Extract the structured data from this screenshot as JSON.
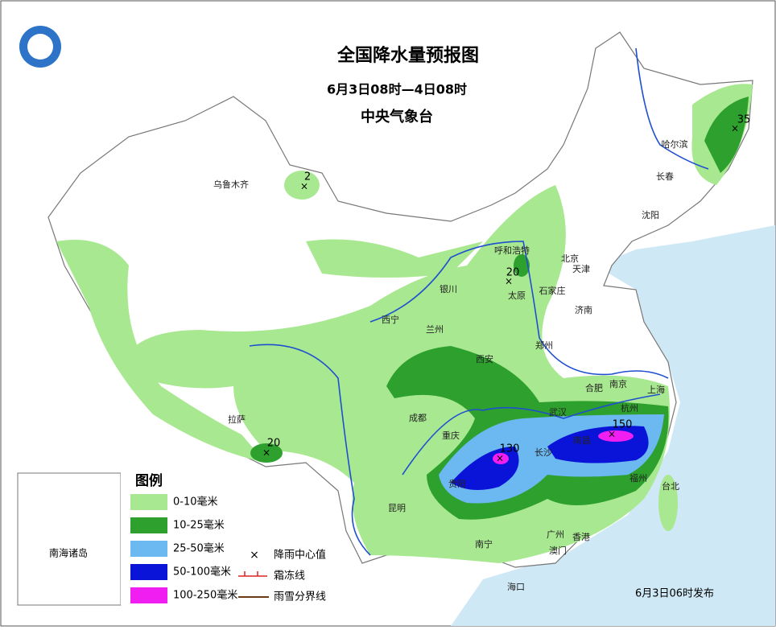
{
  "header": {
    "title": "全国降水量预报图",
    "period": "6月3日08时—4日08时",
    "issuer": "中央气象台"
  },
  "legend": {
    "title": "图例",
    "items": [
      "0-10毫米",
      "10-25毫米",
      "25-50毫米",
      "50-100毫米",
      "100-250毫米"
    ],
    "symbols": [
      "降雨中心值",
      "霜冻线",
      "雨雪分界线"
    ]
  },
  "inset": {
    "label": "南海诸岛"
  },
  "cities": [
    "乌鲁木齐",
    "哈尔滨",
    "长春",
    "沈阳",
    "呼和浩特",
    "北京",
    "天津",
    "石家庄",
    "太原",
    "济南",
    "银川",
    "西宁",
    "兰州",
    "西安",
    "郑州",
    "合肥",
    "南京",
    "上海",
    "杭州",
    "武汉",
    "成都",
    "重庆",
    "长沙",
    "南昌",
    "福州",
    "台北",
    "贵阳",
    "昆明",
    "南宁",
    "广州",
    "香港",
    "澳门",
    "海口",
    "拉萨"
  ],
  "rain_centers": [
    "2",
    "35",
    "20",
    "20",
    "130",
    "150"
  ],
  "footer": "6月3日06时发布"
}
